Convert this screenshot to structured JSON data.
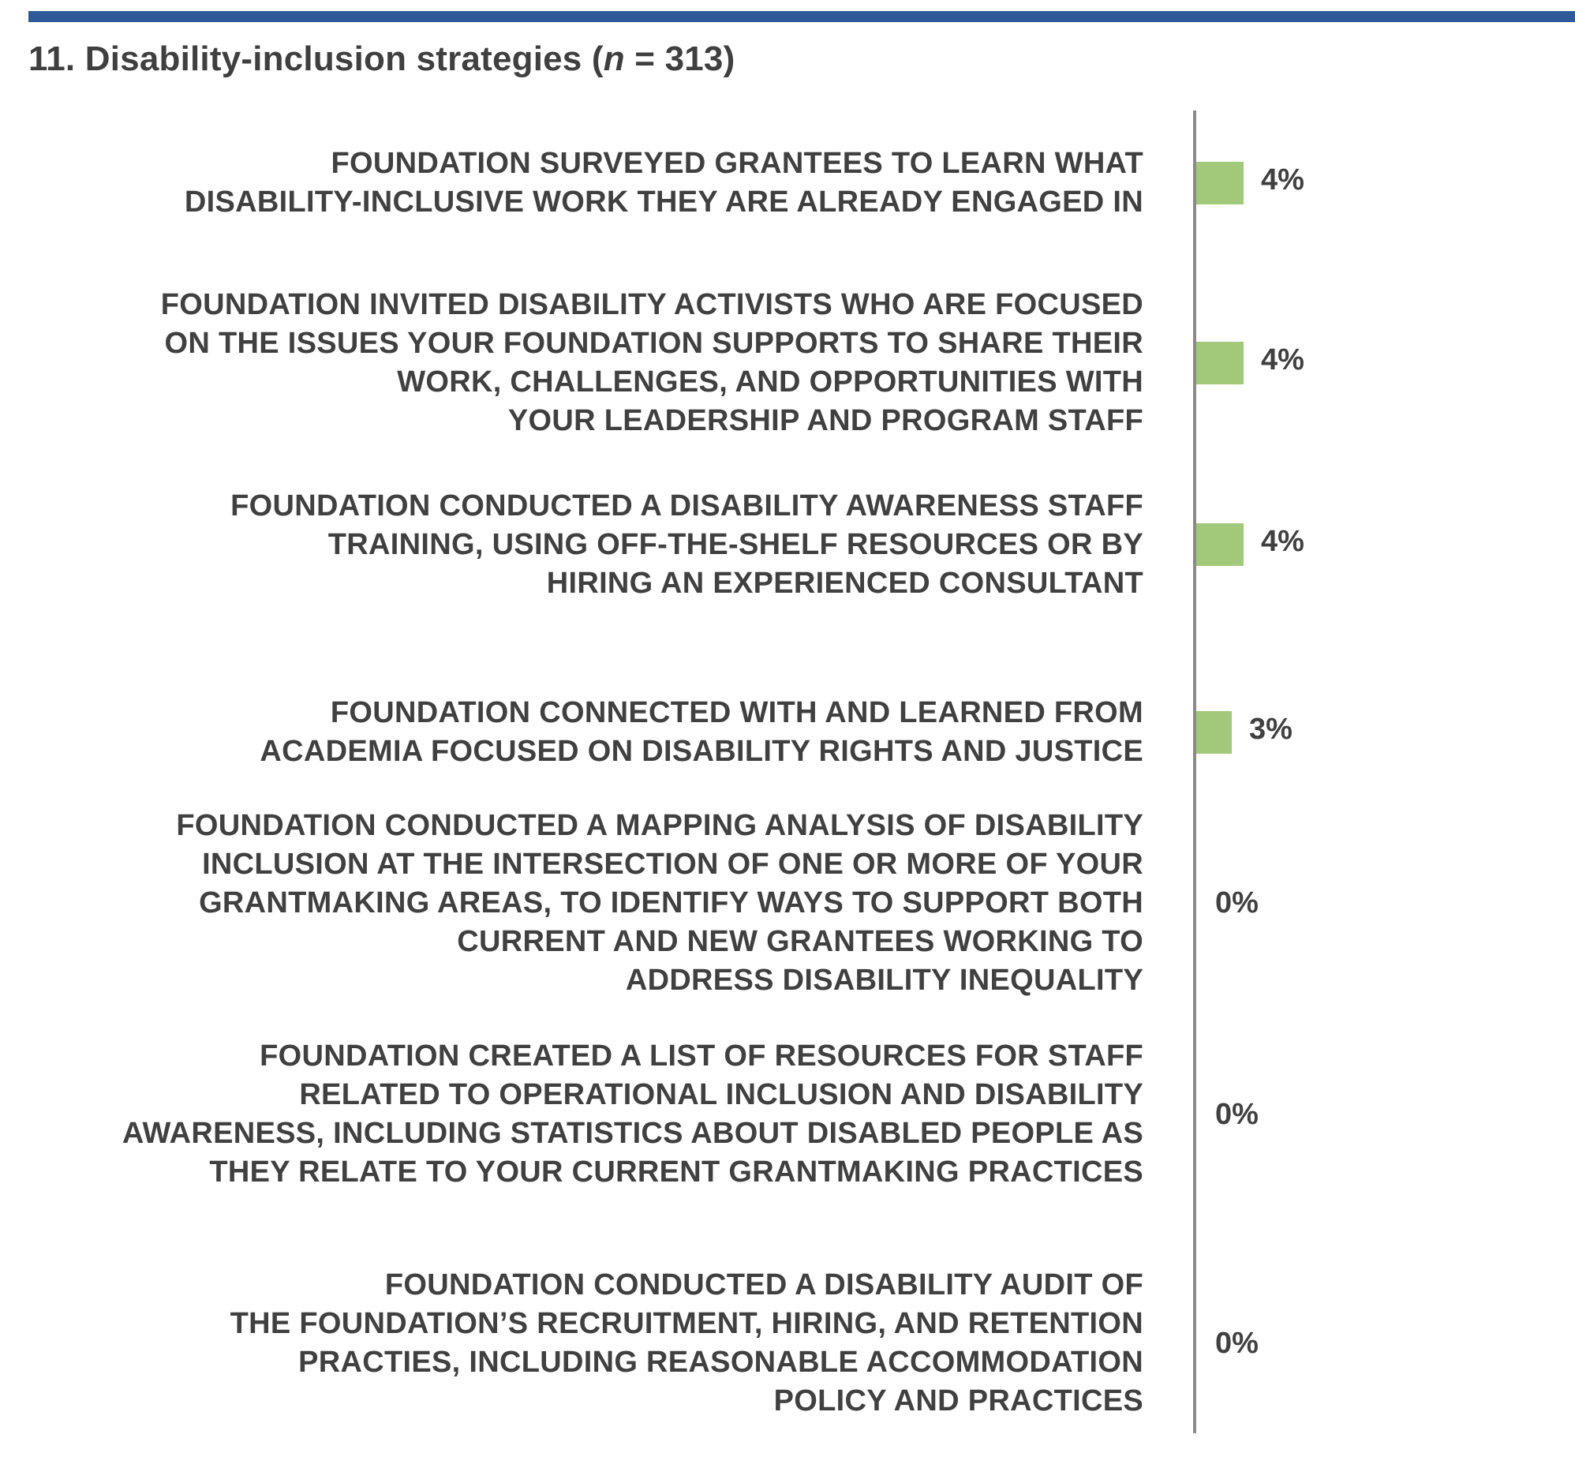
{
  "title": {
    "prefix": "11. Disability-inclusion strategies (",
    "n_symbol": "n",
    "suffix": " = 313)"
  },
  "colors": {
    "rule": "#2f5a9a",
    "bar": "#a2c979",
    "axis": "#8a8a8a",
    "text": "#404040"
  },
  "chart_data": {
    "type": "bar",
    "orientation": "horizontal",
    "title": "11. Disability-inclusion strategies (n = 313)",
    "categories": [
      "FOUNDATION SURVEYED GRANTEES TO LEARN WHAT\nDISABILITY-INCLUSIVE WORK THEY ARE ALREADY ENGAGED IN",
      "FOUNDATION INVITED DISABILITY ACTIVISTS WHO ARE FOCUSED\nON THE ISSUES YOUR FOUNDATION SUPPORTS TO SHARE THEIR\nWORK, CHALLENGES, AND OPPORTUNITIES WITH\nYOUR LEADERSHIP AND PROGRAM STAFF",
      "FOUNDATION CONDUCTED A DISABILITY AWARENESS STAFF\nTRAINING, USING OFF-THE-SHELF RESOURCES OR BY\nHIRING AN EXPERIENCED CONSULTANT",
      "FOUNDATION CONNECTED WITH AND LEARNED FROM\nACADEMIA FOCUSED ON DISABILITY RIGHTS AND JUSTICE",
      "FOUNDATION CONDUCTED A MAPPING ANALYSIS OF DISABILITY\nINCLUSION AT THE INTERSECTION OF ONE OR MORE OF YOUR\nGRANTMAKING AREAS, TO IDENTIFY WAYS TO SUPPORT BOTH\nCURRENT AND NEW GRANTEES WORKING TO\nADDRESS DISABILITY INEQUALITY",
      "FOUNDATION CREATED A LIST OF RESOURCES FOR STAFF\nRELATED TO OPERATIONAL INCLUSION AND DISABILITY\nAWARENESS, INCLUDING STATISTICS ABOUT DISABLED PEOPLE AS\nTHEY RELATE TO YOUR CURRENT GRANTMAKING PRACTICES",
      "FOUNDATION CONDUCTED A DISABILITY AUDIT OF\nTHE FOUNDATION’S RECRUITMENT, HIRING, AND RETENTION\nPRACTIES, INCLUDING REASONABLE ACCOMMODATION\nPOLICY AND PRACTICES"
    ],
    "values": [
      4,
      4,
      4,
      3,
      0,
      0,
      0
    ],
    "value_labels": [
      "4%",
      "4%",
      "4%",
      "3%",
      "0%",
      "0%",
      "0%"
    ],
    "unit": "%",
    "xlabel": "",
    "ylabel": "",
    "grid": false,
    "legend": "none"
  }
}
